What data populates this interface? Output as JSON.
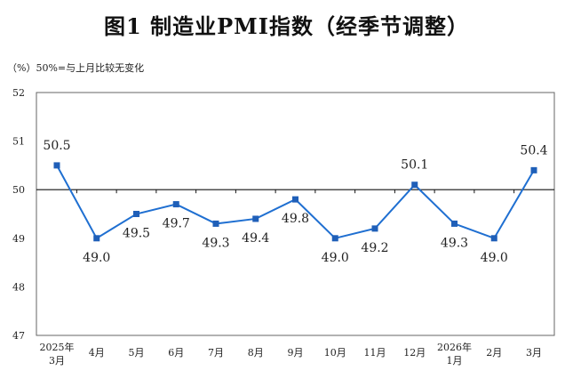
{
  "title": "图1  制造业PMI指数（经季节调整）",
  "unit_note": "（%）50%=与上月比较无变化",
  "colors": {
    "line": "#1f6fd1",
    "marker": "#1f5fb8",
    "axis": "#666666",
    "reference": "#111111",
    "text": "#222222"
  },
  "chart_data": {
    "type": "line",
    "title": "图1  制造业PMI指数（经季节调整）",
    "ylabel": "（%）",
    "xlabel": "",
    "ylim": [
      47,
      52
    ],
    "yticks": [
      47,
      48,
      49,
      50,
      51,
      52
    ],
    "reference_line": 50,
    "categories": [
      [
        "2025年",
        "3月"
      ],
      [
        "4月"
      ],
      [
        "5月"
      ],
      [
        "6月"
      ],
      [
        "7月"
      ],
      [
        "8月"
      ],
      [
        "9月"
      ],
      [
        "10月"
      ],
      [
        "11月"
      ],
      [
        "12月"
      ],
      [
        "2026年",
        "1月"
      ],
      [
        "2月"
      ],
      [
        "3月"
      ]
    ],
    "series": [
      {
        "name": "制造业PMI",
        "values": [
          50.5,
          49.0,
          49.5,
          49.7,
          49.3,
          49.4,
          49.8,
          49.0,
          49.2,
          50.1,
          49.3,
          49.0,
          50.4
        ],
        "labels": [
          "50.5",
          "49.0",
          "49.5",
          "49.7",
          "49.3",
          "49.4",
          "49.8",
          "49.0",
          "49.2",
          "50.1",
          "49.3",
          "49.0",
          "50.4"
        ]
      }
    ]
  }
}
